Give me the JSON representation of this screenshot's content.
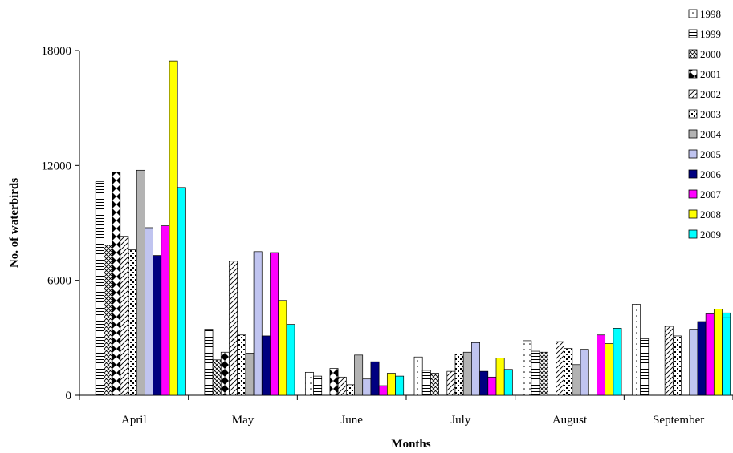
{
  "chart_data": {
    "type": "bar",
    "xlabel": "Months",
    "ylabel": "No. of waterbirds",
    "ylim": [
      0,
      18000
    ],
    "yticks": [
      0,
      6000,
      12000,
      18000
    ],
    "grid": false,
    "legend_position": "right",
    "categories": [
      "April",
      "May",
      "June",
      "July",
      "August",
      "September"
    ],
    "series": [
      {
        "name": "1998",
        "pattern": "sparse-dots",
        "color": "#ffffff",
        "values": [
          0,
          0,
          1200,
          2000,
          2850,
          4750
        ]
      },
      {
        "name": "1999",
        "pattern": "horizontal-lines",
        "color": "#ffffff",
        "values": [
          11150,
          3450,
          1000,
          1300,
          2300,
          2950
        ]
      },
      {
        "name": "2000",
        "pattern": "crosshatch",
        "color": "#ffffff",
        "values": [
          7850,
          1850,
          0,
          1150,
          2250,
          0
        ]
      },
      {
        "name": "2001",
        "pattern": "diamonds",
        "color": "#000000",
        "values": [
          11650,
          2250,
          1400,
          0,
          0,
          0
        ]
      },
      {
        "name": "2002",
        "pattern": "diagonal-lines",
        "color": "#ffffff",
        "values": [
          8300,
          7000,
          950,
          1250,
          2800,
          3600
        ]
      },
      {
        "name": "2003",
        "pattern": "dots",
        "color": "#ffffff",
        "values": [
          7600,
          3150,
          550,
          2150,
          2450,
          3100
        ]
      },
      {
        "name": "2004",
        "pattern": "solid",
        "color": "#b3b3b3",
        "values": [
          11750,
          2200,
          2100,
          2250,
          1600,
          0
        ]
      },
      {
        "name": "2005",
        "pattern": "solid",
        "color": "#c0c4f0",
        "values": [
          8750,
          7500,
          850,
          2750,
          2400,
          3450
        ]
      },
      {
        "name": "2006",
        "pattern": "solid",
        "color": "#000080",
        "values": [
          7300,
          3100,
          1750,
          1250,
          0,
          0
        ]
      },
      {
        "name": "2007",
        "pattern": "solid",
        "color": "#ff00ff",
        "values": [
          8850,
          7450,
          500,
          950,
          3150,
          3000
        ]
      },
      {
        "name": "2008",
        "pattern": "solid",
        "color": "#ffff00",
        "values": [
          17450,
          4950,
          1150,
          1950,
          2700,
          3800
        ]
      },
      {
        "name": "2009",
        "pattern": "solid",
        "color": "#00ffff",
        "values": [
          10850,
          3700,
          1000,
          1350,
          3500,
          4300
        ]
      }
    ],
    "extra_september": [
      {
        "name": "2006",
        "value": 3850
      },
      {
        "name": "2007",
        "value": 4250
      },
      {
        "name": "2008",
        "value": 4500
      },
      {
        "name": "2009",
        "value": 4050
      }
    ]
  }
}
